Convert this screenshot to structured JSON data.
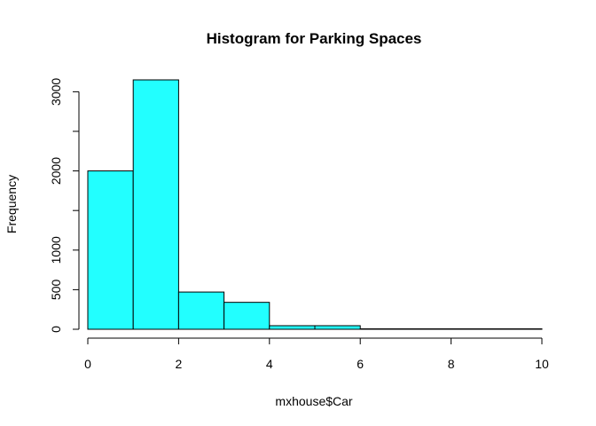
{
  "chart_data": {
    "type": "bar",
    "title": "Histogram for Parking Spaces",
    "xlabel": "mxhouse$Car",
    "ylabel": "Frequency",
    "bins": [
      {
        "start": 0,
        "end": 1,
        "count": 2000
      },
      {
        "start": 1,
        "end": 2,
        "count": 3150
      },
      {
        "start": 2,
        "end": 3,
        "count": 470
      },
      {
        "start": 3,
        "end": 4,
        "count": 340
      },
      {
        "start": 4,
        "end": 5,
        "count": 45
      },
      {
        "start": 5,
        "end": 6,
        "count": 45
      },
      {
        "start": 6,
        "end": 7,
        "count": 5
      },
      {
        "start": 7,
        "end": 8,
        "count": 3
      },
      {
        "start": 8,
        "end": 9,
        "count": 3
      },
      {
        "start": 9,
        "end": 10,
        "count": 3
      }
    ],
    "xlim": [
      0,
      10
    ],
    "ylim": [
      0,
      3150
    ],
    "x_ticks": [
      "0",
      "2",
      "4",
      "6",
      "8",
      "10"
    ],
    "y_ticks": [
      "0",
      "500",
      "1000",
      "2000",
      "3000"
    ],
    "y_minor_ticks": [
      1500,
      2500
    ],
    "bar_color": "#22ffff",
    "grid": false,
    "legend": "none"
  }
}
